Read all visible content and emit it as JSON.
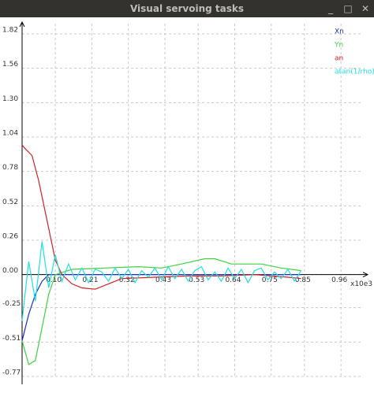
{
  "window": {
    "title": "Visual servoing tasks"
  },
  "chart_data": {
    "type": "line",
    "x_label": "x10e3",
    "xlim": [
      0,
      1.0
    ],
    "ylim": [
      -0.77,
      1.82
    ],
    "grid": true,
    "legend": "top-right",
    "xticks": [
      {
        "value": 0.1,
        "label": "0.10"
      },
      {
        "value": 0.21,
        "label": "0.21"
      },
      {
        "value": 0.32,
        "label": "0.32"
      },
      {
        "value": 0.43,
        "label": "0.43"
      },
      {
        "value": 0.53,
        "label": "0.53"
      },
      {
        "value": 0.64,
        "label": "0.64"
      },
      {
        "value": 0.75,
        "label": "0.75"
      },
      {
        "value": 0.85,
        "label": "0.85"
      },
      {
        "value": 0.96,
        "label": "0.96"
      }
    ],
    "yticks": [
      1.82,
      1.56,
      {
        "value": 1.3,
        "label": "1.30"
      },
      1.04,
      0.78,
      0.52,
      0.26,
      {
        "value": 0,
        "label": "0.00"
      },
      -0.25,
      -0.51,
      -0.77
    ],
    "series": [
      {
        "name": "Xn",
        "color": "#2030c0",
        "x": [
          0,
          0.02,
          0.04,
          0.06,
          0.08,
          0.2,
          0.4,
          0.6,
          0.84
        ],
        "values": [
          -0.5,
          -0.3,
          -0.15,
          -0.05,
          0.0,
          0.0,
          0.0,
          0.0,
          0.0
        ]
      },
      {
        "name": "Yn",
        "color": "#40d040",
        "x": [
          0,
          0.02,
          0.04,
          0.06,
          0.08,
          0.1,
          0.15,
          0.25,
          0.35,
          0.42,
          0.48,
          0.55,
          0.58,
          0.63,
          0.72,
          0.78,
          0.84
        ],
        "values": [
          -0.5,
          -0.68,
          -0.65,
          -0.4,
          -0.15,
          0.0,
          0.04,
          0.05,
          0.06,
          0.05,
          0.08,
          0.12,
          0.12,
          0.08,
          0.08,
          0.05,
          0.03
        ]
      },
      {
        "name": "an",
        "color": "#d02020",
        "x": [
          0,
          0.01,
          0.03,
          0.05,
          0.08,
          0.1,
          0.12,
          0.15,
          0.18,
          0.22,
          0.26,
          0.3,
          0.4,
          0.5,
          0.6,
          0.7,
          0.8,
          0.84
        ],
        "values": [
          0.98,
          0.95,
          0.9,
          0.71,
          0.35,
          0.11,
          0.0,
          -0.07,
          -0.1,
          -0.11,
          -0.07,
          -0.03,
          -0.02,
          -0.01,
          -0.01,
          0.0,
          -0.02,
          -0.03
        ]
      },
      {
        "name": "atan(1/rho)",
        "color": "#20e0e0",
        "x": [
          0,
          0.02,
          0.04,
          0.06,
          0.08,
          0.1,
          0.12,
          0.14,
          0.16,
          0.18,
          0.2,
          0.22,
          0.24,
          0.26,
          0.28,
          0.3,
          0.32,
          0.34,
          0.36,
          0.38,
          0.4,
          0.42,
          0.44,
          0.46,
          0.48,
          0.5,
          0.52,
          0.54,
          0.56,
          0.58,
          0.6,
          0.62,
          0.64,
          0.66,
          0.68,
          0.7,
          0.72,
          0.74,
          0.76,
          0.78,
          0.8,
          0.82,
          0.84
        ],
        "values": [
          -0.35,
          0.1,
          -0.2,
          0.25,
          -0.1,
          0.15,
          -0.05,
          0.08,
          -0.04,
          0.05,
          -0.06,
          0.04,
          0.02,
          -0.05,
          0.05,
          -0.03,
          0.04,
          -0.06,
          0.03,
          -0.02,
          0.05,
          -0.04,
          0.06,
          -0.03,
          0.04,
          -0.05,
          0.03,
          0.06,
          -0.04,
          0.02,
          -0.05,
          0.05,
          -0.03,
          0.04,
          -0.06,
          0.03,
          0.05,
          -0.04,
          0.02,
          -0.03,
          0.04,
          -0.05,
          0.03
        ]
      }
    ]
  }
}
